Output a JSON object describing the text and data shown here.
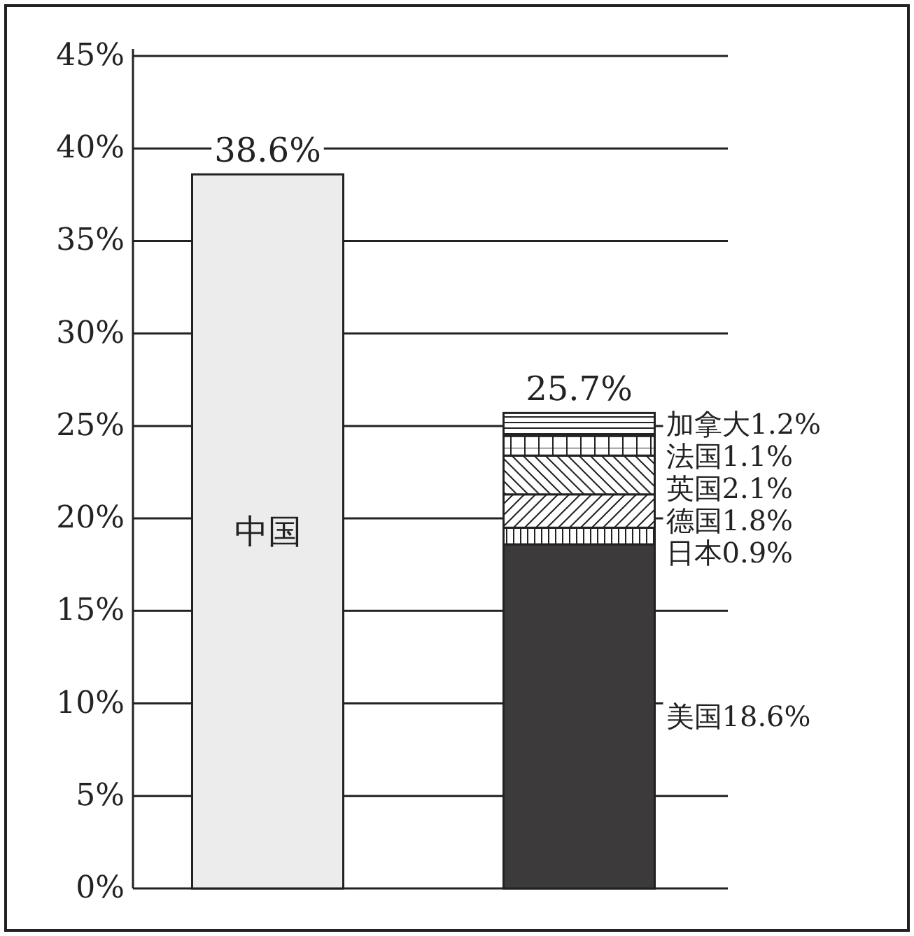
{
  "chart_data": {
    "type": "bar",
    "stacked": true,
    "categories": [
      null,
      null
    ],
    "ylim": [
      0,
      45
    ],
    "yticks": [
      {
        "value": 0,
        "label": "0%"
      },
      {
        "value": 5,
        "label": "5%"
      },
      {
        "value": 10,
        "label": "10%"
      },
      {
        "value": 15,
        "label": "15%"
      },
      {
        "value": 20,
        "label": "20%"
      },
      {
        "value": 25,
        "label": "25%"
      },
      {
        "value": 30,
        "label": "30%"
      },
      {
        "value": 35,
        "label": "35%"
      },
      {
        "value": 40,
        "label": "40%"
      },
      {
        "value": 45,
        "label": "45%"
      }
    ],
    "grid": "y",
    "legend": false,
    "totals": [
      "38.6%",
      "25.7%"
    ],
    "series": [
      {
        "name": "中国",
        "color": "#ececec",
        "values": [
          38.6,
          null
        ]
      },
      {
        "name": "美国",
        "color": "#3c3a3a",
        "values": [
          null,
          18.6
        ],
        "value_labels": [
          null,
          "18.6%"
        ]
      },
      {
        "name": "日本",
        "color": "#222222",
        "values": [
          null,
          0.9
        ],
        "value_labels": [
          null,
          "0.9%"
        ]
      },
      {
        "name": "德国",
        "color": "#222222",
        "values": [
          null,
          1.8
        ],
        "value_labels": [
          null,
          "1.8%"
        ]
      },
      {
        "name": "英国",
        "color": "#222222",
        "values": [
          null,
          2.1
        ],
        "value_labels": [
          null,
          "2.1%"
        ]
      },
      {
        "name": "法国",
        "color": "#222222",
        "values": [
          null,
          1.1
        ],
        "value_labels": [
          null,
          "1.1%"
        ]
      },
      {
        "name": "加拿大",
        "color": "#222222",
        "values": [
          null,
          1.2
        ],
        "value_labels": [
          null,
          "1.2%"
        ]
      }
    ]
  }
}
